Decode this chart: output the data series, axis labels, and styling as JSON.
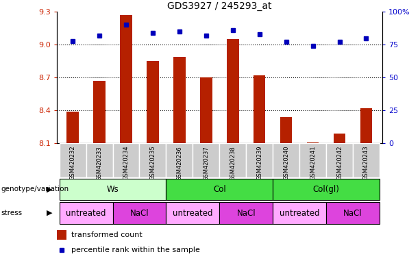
{
  "title": "GDS3927 / 245293_at",
  "samples": [
    "GSM420232",
    "GSM420233",
    "GSM420234",
    "GSM420235",
    "GSM420236",
    "GSM420237",
    "GSM420238",
    "GSM420239",
    "GSM420240",
    "GSM420241",
    "GSM420242",
    "GSM420243"
  ],
  "bar_values": [
    8.39,
    8.67,
    9.27,
    8.85,
    8.89,
    8.7,
    9.05,
    8.72,
    8.34,
    8.11,
    8.19,
    8.42
  ],
  "dot_values": [
    78,
    82,
    90,
    84,
    85,
    82,
    86,
    83,
    77,
    74,
    77,
    80
  ],
  "bar_bottom": 8.1,
  "ylim_left": [
    8.1,
    9.3
  ],
  "ylim_right": [
    0,
    100
  ],
  "yticks_left": [
    8.1,
    8.4,
    8.7,
    9.0,
    9.3
  ],
  "yticks_right": [
    0,
    25,
    50,
    75,
    100
  ],
  "ytick_labels_right": [
    "0",
    "25",
    "50",
    "75",
    "100%"
  ],
  "bar_color": "#b52000",
  "dot_color": "#0000bb",
  "genotype_groups": [
    {
      "label": "Ws",
      "start": 0,
      "end": 4,
      "color": "#ccffcc"
    },
    {
      "label": "Col",
      "start": 4,
      "end": 8,
      "color": "#44dd44"
    },
    {
      "label": "Col(gl)",
      "start": 8,
      "end": 12,
      "color": "#44dd44"
    }
  ],
  "stress_groups": [
    {
      "label": "untreated",
      "start": 0,
      "end": 2,
      "color": "#ffaaff"
    },
    {
      "label": "NaCl",
      "start": 2,
      "end": 4,
      "color": "#dd44dd"
    },
    {
      "label": "untreated",
      "start": 4,
      "end": 6,
      "color": "#ffaaff"
    },
    {
      "label": "NaCl",
      "start": 6,
      "end": 8,
      "color": "#dd44dd"
    },
    {
      "label": "untreated",
      "start": 8,
      "end": 10,
      "color": "#ffaaff"
    },
    {
      "label": "NaCl",
      "start": 10,
      "end": 12,
      "color": "#dd44dd"
    }
  ],
  "legend_bar_label": "transformed count",
  "legend_dot_label": "percentile rank within the sample",
  "genotype_label": "genotype/variation",
  "stress_label": "stress",
  "background_color": "#ffffff",
  "tick_label_color_left": "#cc2200",
  "tick_label_color_right": "#0000cc",
  "xticklabel_bg": "#cccccc",
  "xticklabel_edgecolor": "#aaaaaa",
  "hgrid_yticks": [
    9.0,
    8.7,
    8.4
  ]
}
